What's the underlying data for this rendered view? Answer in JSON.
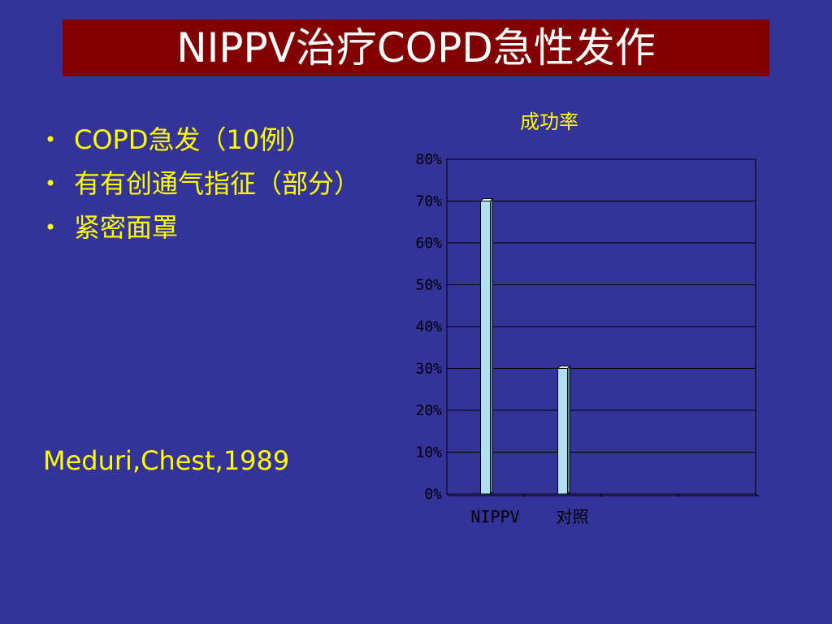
{
  "slide": {
    "title": "NIPPV治疗COPD急性发作",
    "bullets": [
      "COPD急发（10例）",
      "有有创通气指征（部分）",
      "紧密面罩"
    ],
    "bullet_symbol": "•",
    "citation": "Meduri,Chest,1989"
  },
  "colors": {
    "background": "#333399",
    "title_bar": "#800000",
    "text": "#ffff00",
    "bar_fill": "#b0e0f0"
  },
  "chart_data": {
    "type": "bar",
    "title": "成功率",
    "categories": [
      "NIPPV",
      "对照"
    ],
    "values": [
      70,
      30
    ],
    "y_tick_labels": [
      "0%",
      "10%",
      "20%",
      "30%",
      "40%",
      "50%",
      "60%",
      "70%",
      "80%"
    ],
    "ylim": [
      0,
      80
    ],
    "y_unit": "%",
    "grid": true,
    "legend": "none",
    "category_slots": 4
  }
}
